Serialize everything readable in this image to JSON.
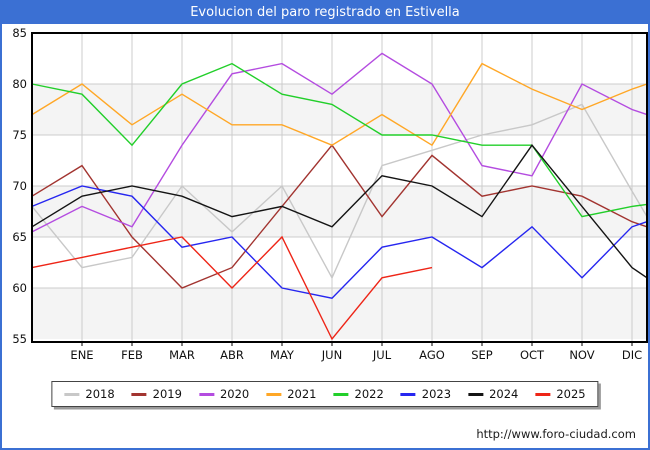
{
  "title": "Evolucion del paro registrado en Estivella",
  "footer": {
    "url": "http://www.foro-ciudad.com"
  },
  "colors": {
    "titlebar": "#3b70d3",
    "outer_border": "#3b70d3",
    "grid": "#cccccc",
    "band": "#f4f4f4",
    "frame": "#000000",
    "tick_text": "#111111"
  },
  "chart_data": {
    "type": "line",
    "title": "Evolucion del paro registrado en Estivella",
    "x_categories": [
      "ENE",
      "FEB",
      "MAR",
      "ABR",
      "MAY",
      "JUN",
      "JUL",
      "AGO",
      "SEP",
      "OCT",
      "NOV",
      "DIC"
    ],
    "y_ticks": [
      85,
      80,
      75,
      70,
      65,
      60,
      55
    ],
    "ylim": [
      55,
      85
    ],
    "grid": true,
    "legend_position": "bottom",
    "note_edges": "edge_start/edge_end are the clipped line values at the plot borders before ENE and after DIC",
    "series": [
      {
        "name": "2018",
        "color": "#c8c8c8",
        "edge_start": 68,
        "values": [
          62,
          63,
          70,
          65.5,
          70,
          61,
          72,
          73.5,
          75,
          76,
          78,
          69.5
        ],
        "edge_end": 67
      },
      {
        "name": "2019",
        "color": "#a23430",
        "edge_start": 69,
        "values": [
          72,
          65,
          60,
          62,
          68,
          74,
          67,
          73,
          69,
          70,
          69,
          66.5
        ],
        "edge_end": 66
      },
      {
        "name": "2020",
        "color": "#b44ce0",
        "edge_start": 65.5,
        "values": [
          68,
          66,
          74,
          81,
          82,
          79,
          83,
          80,
          72,
          71,
          80,
          77.5
        ],
        "edge_end": 77
      },
      {
        "name": "2021",
        "color": "#ffa726",
        "edge_start": 77,
        "values": [
          80,
          76,
          79,
          76,
          76,
          74,
          77,
          74,
          82,
          79.5,
          77.5,
          79.5
        ],
        "edge_end": 80
      },
      {
        "name": "2022",
        "color": "#22cf2a",
        "edge_start": 80,
        "values": [
          79,
          74,
          80,
          82,
          79,
          78,
          75,
          75,
          74,
          74,
          67,
          68
        ],
        "edge_end": 68.2
      },
      {
        "name": "2023",
        "color": "#2626f0",
        "edge_start": 68,
        "values": [
          70,
          69,
          64,
          65,
          60,
          59,
          64,
          65,
          62,
          66,
          61,
          66
        ],
        "edge_end": 66.5
      },
      {
        "name": "2024",
        "color": "#141414",
        "edge_start": 66,
        "values": [
          69,
          70,
          69,
          67,
          68,
          66,
          71,
          70,
          67,
          74,
          68,
          62
        ],
        "edge_end": 61
      },
      {
        "name": "2025",
        "color": "#ee2517",
        "edge_start": 62,
        "values": [
          63,
          64,
          65,
          60,
          65,
          55,
          61,
          62
        ],
        "edge_end": null
      }
    ]
  }
}
